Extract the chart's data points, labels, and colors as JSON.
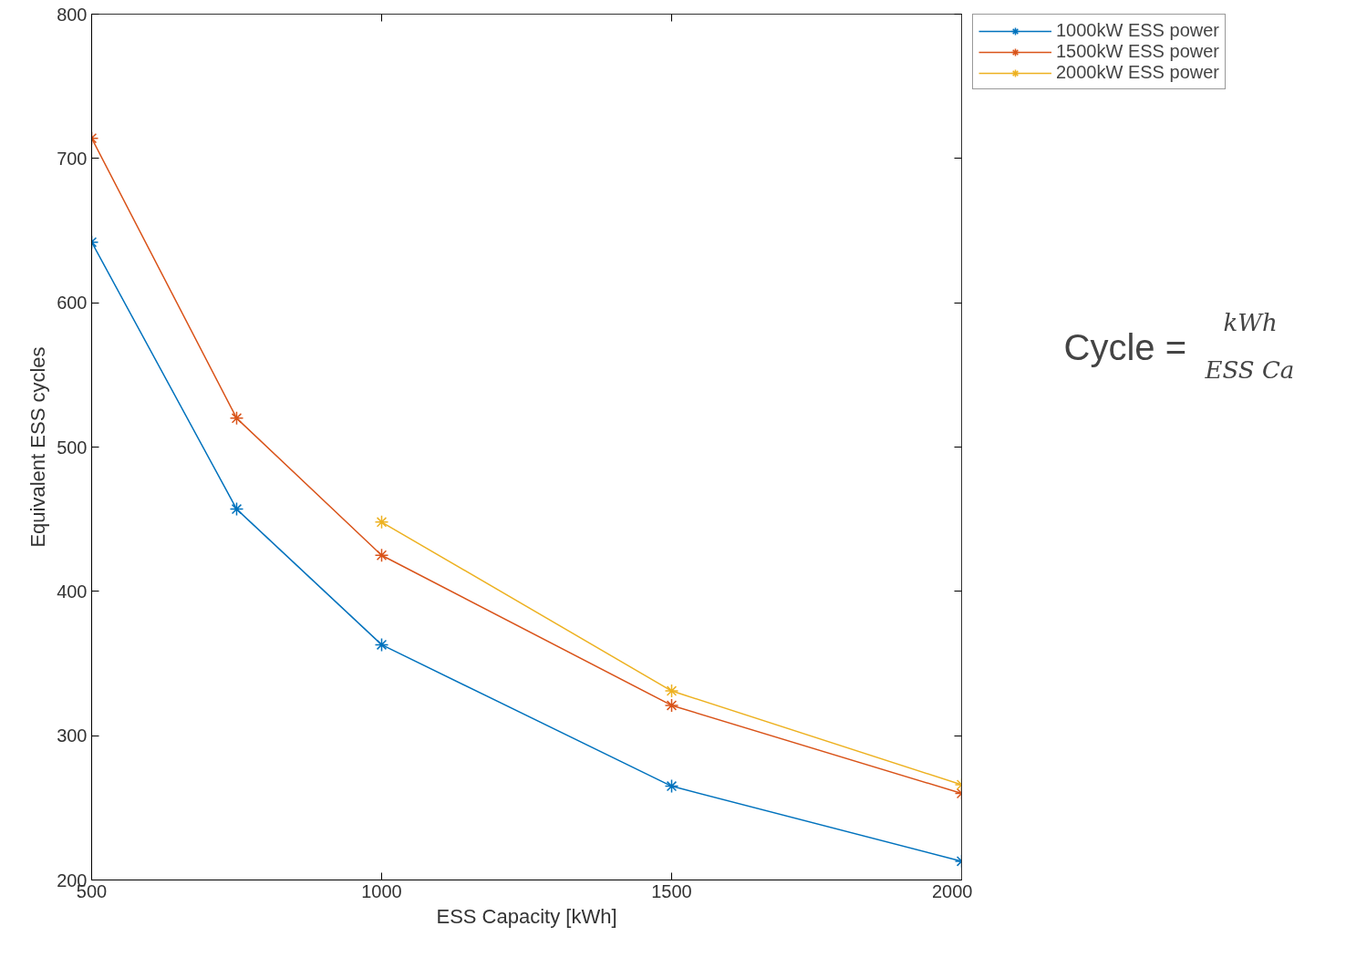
{
  "chart_data": {
    "type": "line",
    "xlabel": "ESS Capacity [kWh]",
    "ylabel": "Equivalent ESS cycles",
    "x": [
      500,
      750,
      1000,
      1500,
      2000
    ],
    "series": [
      {
        "name": "1000kW ESS power",
        "color": "#0072bd",
        "values": [
          642,
          457,
          363,
          265,
          213
        ]
      },
      {
        "name": "1500kW ESS power",
        "color": "#d95319",
        "values": [
          714,
          520,
          425,
          321,
          260
        ]
      },
      {
        "name": "2000kW ESS power",
        "color": "#edb120",
        "values": [
          null,
          null,
          448,
          331,
          266
        ]
      }
    ],
    "xlim": [
      500,
      2000
    ],
    "xticks": [
      500,
      1000,
      1500,
      2000
    ],
    "ylim": [
      200,
      800
    ],
    "yticks": [
      200,
      300,
      400,
      500,
      600,
      700,
      800
    ],
    "marker": "cross",
    "line_style": "solid",
    "grid": false,
    "legend": "top right",
    "annotations": [
      "Cycle =",
      "kWh",
      "ESS Ca"
    ]
  }
}
